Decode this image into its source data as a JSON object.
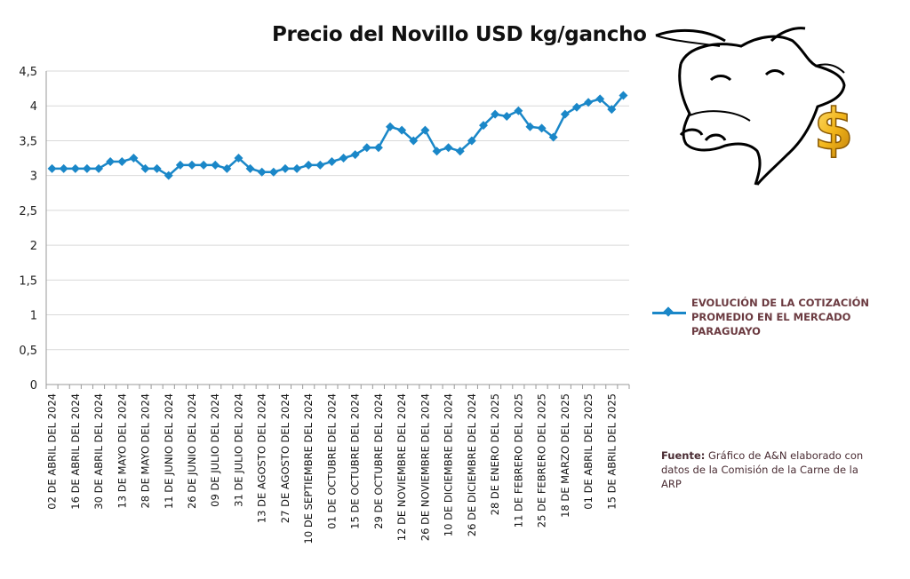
{
  "chart_data": {
    "type": "line",
    "title": "Precio del Novillo USD kg/gancho",
    "xlabel": "",
    "ylabel": "",
    "ylim": [
      0,
      4.5
    ],
    "yticks": [
      "0",
      "0,5",
      "1",
      "1,5",
      "2",
      "2,5",
      "3",
      "3,5",
      "4",
      "4,5"
    ],
    "xtick_labels": [
      "02 DE ABRIL  DEL 2024",
      "16 DE ABRIL DEL 2024",
      "30 DE ABRIL DEL 2024",
      "13 DE MAYO DEL 2024",
      "28 DE MAYO DEL 2024",
      "11 DE JUNIO DEL 2024",
      "26 DE JUNIO DEL 2024",
      "09 DE JULIO  DEL 2024",
      "31 DE JULIO DEL 2024",
      "13 DE AGOSTO DEL 2024",
      "27 DE AGOSTO DEL 2024",
      "10 DE SEPTIEMBRE DEL 2024",
      "01 DE OCTUBRE DEL 2024",
      "15 DE OCTUBRE DEL 2024",
      "29 DE OCTUBRE DEL 2024",
      "12 DE NOVIEMBRE DEL 2024",
      "26 DE NOVIEMBRE DEL 2024",
      "10 DE DICIEMBRE DEL 2024",
      "26  DE DICIEMBRE DEL 2024",
      "28 DE ENERO DEL 2025",
      "11 DE FEBRERO DEL 2025",
      "25 DE FEBRERO DEL 2025",
      "18 DE MARZO DEL 2025",
      "01 DE ABRIL DEL 2025",
      "15 DE ABRIL DEL 2025"
    ],
    "grid": true,
    "legend_position": "right",
    "series": [
      {
        "name": "EVOLUCIÓN DE LA COTIZACIÓN PROMEDIO EN EL MERCADO PARAGUAYO",
        "color": "#1a87c8",
        "values": [
          3.1,
          3.1,
          3.1,
          3.1,
          3.1,
          3.2,
          3.2,
          3.25,
          3.1,
          3.1,
          3.0,
          3.15,
          3.15,
          3.15,
          3.15,
          3.1,
          3.25,
          3.1,
          3.05,
          3.05,
          3.1,
          3.1,
          3.15,
          3.15,
          3.2,
          3.25,
          3.3,
          3.4,
          3.4,
          3.7,
          3.65,
          3.5,
          3.65,
          3.35,
          3.4,
          3.35,
          3.5,
          3.72,
          3.88,
          3.85,
          3.93,
          3.7,
          3.68,
          3.55,
          3.88,
          3.98,
          4.05,
          4.1,
          3.95,
          4.15
        ]
      }
    ]
  },
  "legend": {
    "label": "EVOLUCIÓN DE LA COTIZACIÓN PROMEDIO EN EL MERCADO PARAGUAYO"
  },
  "source": {
    "label": "Fuente:",
    "text": "Gráfico de A&N elaborado con datos de la Comisión de la Carne de la ARP"
  },
  "logo": {
    "icon": "bull-head-dollar-icon",
    "glyph": "$"
  }
}
